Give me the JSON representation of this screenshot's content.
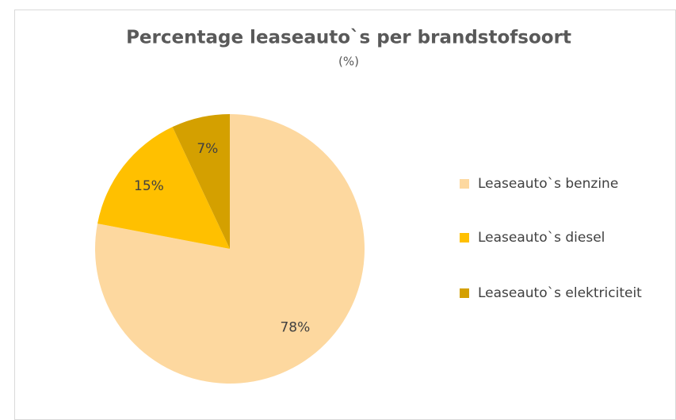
{
  "chart_data": {
    "type": "pie",
    "title": "Percentage leaseauto`s per brandstofsoort",
    "subtitle": "(%)",
    "categories": [
      "Leaseauto`s benzine",
      "Leaseauto`s diesel",
      "Leaseauto`s elektriciteit"
    ],
    "values": [
      78,
      15,
      7
    ],
    "value_labels": [
      "78%",
      "15%",
      "7%"
    ],
    "colors": [
      "#fdd89f",
      "#ffc000",
      "#d4a000"
    ],
    "legend": "right"
  }
}
